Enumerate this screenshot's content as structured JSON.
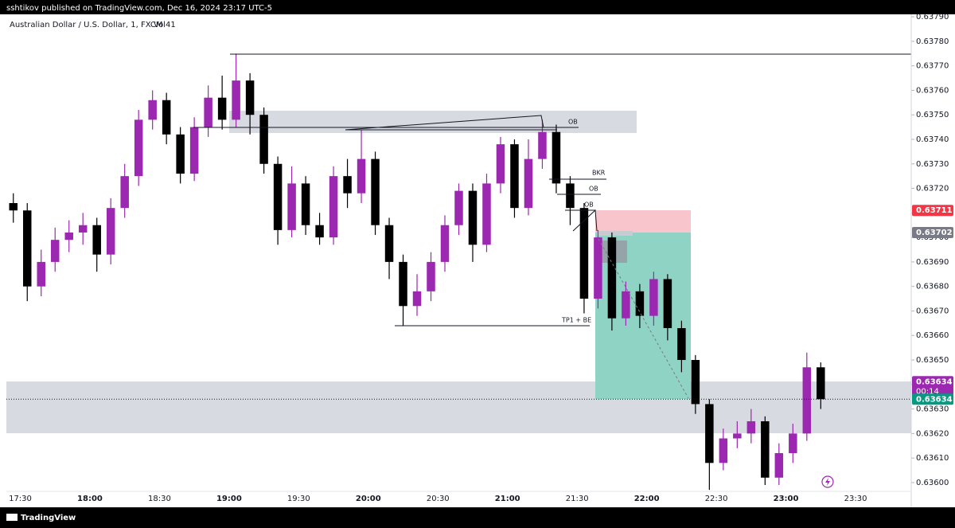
{
  "header": {
    "publisher": "sshtikov published on TradingView.com, Dec 16, 2024 23:17 UTC-5"
  },
  "chart_data": {
    "type": "candlestick",
    "title": "Australian Dollar / U.S. Dollar, 1, FXCM",
    "indicator": "Vol41",
    "x": [
      "17:27",
      "17:33",
      "17:39",
      "17:45",
      "17:51",
      "17:57",
      "18:03",
      "18:09",
      "18:15",
      "18:21",
      "18:27",
      "18:33",
      "18:39",
      "18:45",
      "18:51",
      "18:57",
      "19:03",
      "19:09",
      "19:15",
      "19:21",
      "19:27",
      "19:33",
      "19:39",
      "19:45",
      "19:51",
      "19:57",
      "20:03",
      "20:09",
      "20:15",
      "20:21",
      "20:27",
      "20:33",
      "20:39",
      "20:45",
      "20:51",
      "20:57",
      "21:03",
      "21:09",
      "21:15",
      "21:21",
      "21:27",
      "21:33",
      "21:39",
      "21:45",
      "21:51",
      "21:57",
      "22:03",
      "22:09",
      "22:15",
      "22:21",
      "22:27",
      "22:33",
      "22:39",
      "22:45",
      "22:51",
      "22:57",
      "23:03",
      "23:09",
      "23:15"
    ],
    "open": [
      0.63714,
      0.63711,
      0.6368,
      0.6369,
      0.63699,
      0.63702,
      0.63705,
      0.63693,
      0.63712,
      0.63725,
      0.63748,
      0.63756,
      0.63742,
      0.63726,
      0.63745,
      0.63757,
      0.63748,
      0.63764,
      0.6375,
      0.6373,
      0.63703,
      0.63722,
      0.63705,
      0.637,
      0.63725,
      0.63718,
      0.63732,
      0.63705,
      0.6369,
      0.63672,
      0.63678,
      0.6369,
      0.63705,
      0.63719,
      0.63697,
      0.63722,
      0.63738,
      0.63712,
      0.63732,
      0.63743,
      0.63722,
      0.63712,
      0.63675,
      0.637,
      0.63667,
      0.63678,
      0.63668,
      0.63683,
      0.63663,
      0.6365,
      0.63632,
      0.63608,
      0.63618,
      0.6362,
      0.63625,
      0.63602,
      0.63612,
      0.6362,
      0.63647
    ],
    "high": [
      0.63718,
      0.63714,
      0.63695,
      0.63704,
      0.63707,
      0.6371,
      0.63708,
      0.63716,
      0.6373,
      0.63752,
      0.6376,
      0.63759,
      0.63745,
      0.63749,
      0.63762,
      0.63766,
      0.63775,
      0.63767,
      0.63753,
      0.63733,
      0.63729,
      0.63725,
      0.6371,
      0.63729,
      0.63732,
      0.63744,
      0.63735,
      0.63708,
      0.63693,
      0.63685,
      0.63694,
      0.63709,
      0.63722,
      0.63722,
      0.63726,
      0.63741,
      0.6374,
      0.6374,
      0.63748,
      0.63746,
      0.63725,
      0.63714,
      0.63703,
      0.63702,
      0.63682,
      0.63681,
      0.63686,
      0.63685,
      0.63666,
      0.63652,
      0.63634,
      0.63622,
      0.63625,
      0.6363,
      0.63627,
      0.63616,
      0.63624,
      0.63653,
      0.63649
    ],
    "low": [
      0.63706,
      0.63674,
      0.63676,
      0.63686,
      0.63694,
      0.63697,
      0.63686,
      0.63689,
      0.63708,
      0.63721,
      0.63744,
      0.63738,
      0.63722,
      0.63723,
      0.63741,
      0.63744,
      0.63745,
      0.63742,
      0.63726,
      0.63697,
      0.637,
      0.63701,
      0.63697,
      0.63697,
      0.63712,
      0.63714,
      0.63701,
      0.63683,
      0.63664,
      0.63668,
      0.63674,
      0.63686,
      0.63701,
      0.6369,
      0.63694,
      0.63718,
      0.63708,
      0.63709,
      0.63728,
      0.63718,
      0.63705,
      0.63669,
      0.63671,
      0.63662,
      0.63664,
      0.63663,
      0.63664,
      0.63658,
      0.63645,
      0.63628,
      0.63597,
      0.63605,
      0.63614,
      0.63616,
      0.63599,
      0.63599,
      0.63608,
      0.63617,
      0.6363
    ],
    "close": [
      0.63711,
      0.6368,
      0.6369,
      0.63699,
      0.63702,
      0.63705,
      0.63693,
      0.63712,
      0.63725,
      0.63748,
      0.63756,
      0.63742,
      0.63726,
      0.63745,
      0.63757,
      0.63748,
      0.63764,
      0.6375,
      0.6373,
      0.63703,
      0.63722,
      0.63705,
      0.637,
      0.63725,
      0.63718,
      0.63732,
      0.63705,
      0.6369,
      0.63672,
      0.63678,
      0.6369,
      0.63705,
      0.63719,
      0.63697,
      0.63722,
      0.63738,
      0.63712,
      0.63732,
      0.63743,
      0.63722,
      0.63712,
      0.63675,
      0.637,
      0.63667,
      0.63678,
      0.63668,
      0.63683,
      0.63663,
      0.6365,
      0.63632,
      0.63608,
      0.63618,
      0.6362,
      0.63625,
      0.63602,
      0.63612,
      0.6362,
      0.63647,
      0.63634
    ],
    "up_color": "#9c27b0",
    "down_color": "#000000",
    "xlim": [
      "17:24",
      "23:54"
    ],
    "xticks": [
      "17:30",
      "18:00",
      "18:30",
      "19:00",
      "19:30",
      "20:00",
      "20:30",
      "21:00",
      "21:30",
      "22:00",
      "22:30",
      "23:00",
      "23:30"
    ],
    "ylim": [
      0.635938,
      0.63791
    ],
    "yticks": [
      {
        "value": 0.636,
        "label": "0.63600"
      },
      {
        "value": 0.6361,
        "label": "0.63610"
      },
      {
        "value": 0.6362,
        "label": "0.63620"
      },
      {
        "value": 0.6363,
        "label": "0.63630"
      },
      {
        "value": 0.6364,
        "label": "0.63640"
      },
      {
        "value": 0.6365,
        "label": "0.63650"
      },
      {
        "value": 0.6366,
        "label": "0.63660"
      },
      {
        "value": 0.6367,
        "label": "0.63670"
      },
      {
        "value": 0.6368,
        "label": "0.63680"
      },
      {
        "value": 0.6369,
        "label": "0.63690"
      },
      {
        "value": 0.637,
        "label": "0.63700"
      },
      {
        "value": 0.6371,
        "label": "0.63710"
      },
      {
        "value": 0.6372,
        "label": "0.63720"
      },
      {
        "value": 0.6373,
        "label": "0.63730"
      },
      {
        "value": 0.6374,
        "label": "0.63740"
      },
      {
        "value": 0.6375,
        "label": "0.63750"
      },
      {
        "value": 0.6376,
        "label": "0.63760"
      },
      {
        "value": 0.6377,
        "label": "0.63770"
      },
      {
        "value": 0.6378,
        "label": "0.63780"
      },
      {
        "value": 0.6379,
        "label": "0.63790"
      }
    ],
    "grid": false,
    "price_labels": [
      {
        "value": 0.63711,
        "color": "#f23645"
      },
      {
        "value": 0.63702,
        "color": "#787b86"
      },
      {
        "value": 0.63634,
        "color": "#9c27b0",
        "countdown": "00:14"
      },
      {
        "value": 0.63634,
        "color": "#089981"
      }
    ],
    "annotations": [
      "OB",
      "BKR",
      "OB",
      "OB",
      "TP1 + BE"
    ]
  },
  "footer": {
    "brand": "TradingView"
  }
}
